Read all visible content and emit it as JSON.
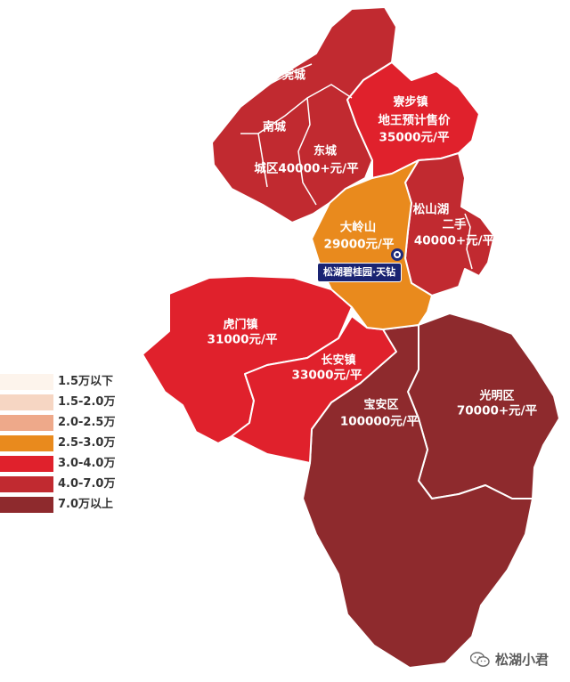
{
  "colors": {
    "level_1_5_below": "#fdf4ec",
    "level_1_5_2_0": "#f6d6c3",
    "level_2_0_2_5": "#eea98a",
    "level_2_5_3_0": "#e98a1d",
    "level_3_0_4_0": "#e0212c",
    "level_4_0_7_0": "#c12a30",
    "level_7_0_above": "#8e2a2d",
    "border": "#ffffff",
    "marker": "#1e2a7a"
  },
  "legend": [
    {
      "label": "1.5万以下",
      "color": "#fdf4ec"
    },
    {
      "label": "1.5-2.0万",
      "color": "#f6d6c3"
    },
    {
      "label": "2.0-2.5万",
      "color": "#eea98a"
    },
    {
      "label": "2.5-3.0万",
      "color": "#e98a1d"
    },
    {
      "label": "3.0-4.0万",
      "color": "#e0212c"
    },
    {
      "label": "4.0-7.0万",
      "color": "#c12a30"
    },
    {
      "label": "7.0万以上",
      "color": "#8e2a2d"
    }
  ],
  "regions": {
    "guancheng": {
      "name": "莞城"
    },
    "nancheng": {
      "name": "南城"
    },
    "dongcheng": {
      "name": "东城"
    },
    "chengqu": {
      "price": "城区40000+元/平"
    },
    "zhaibu": {
      "name": "寮步镇",
      "price_line1": "地王预计售价",
      "price_line2": "35000元/平"
    },
    "dalingshan": {
      "name": "大岭山",
      "price": "29000元/平"
    },
    "songshanhu": {
      "name": "松山湖",
      "line2": "二手",
      "price": "40000+元/平"
    },
    "humen": {
      "name": "虎门镇",
      "price": "31000元/平"
    },
    "changan": {
      "name": "长安镇",
      "price": "33000元/平"
    },
    "baoan": {
      "name": "宝安区",
      "price": "100000元/平"
    },
    "guangming": {
      "name": "光明区",
      "price": "70000+元/平"
    }
  },
  "project_tag": "松湖碧桂园·天钻",
  "watermark": "松湖小君"
}
